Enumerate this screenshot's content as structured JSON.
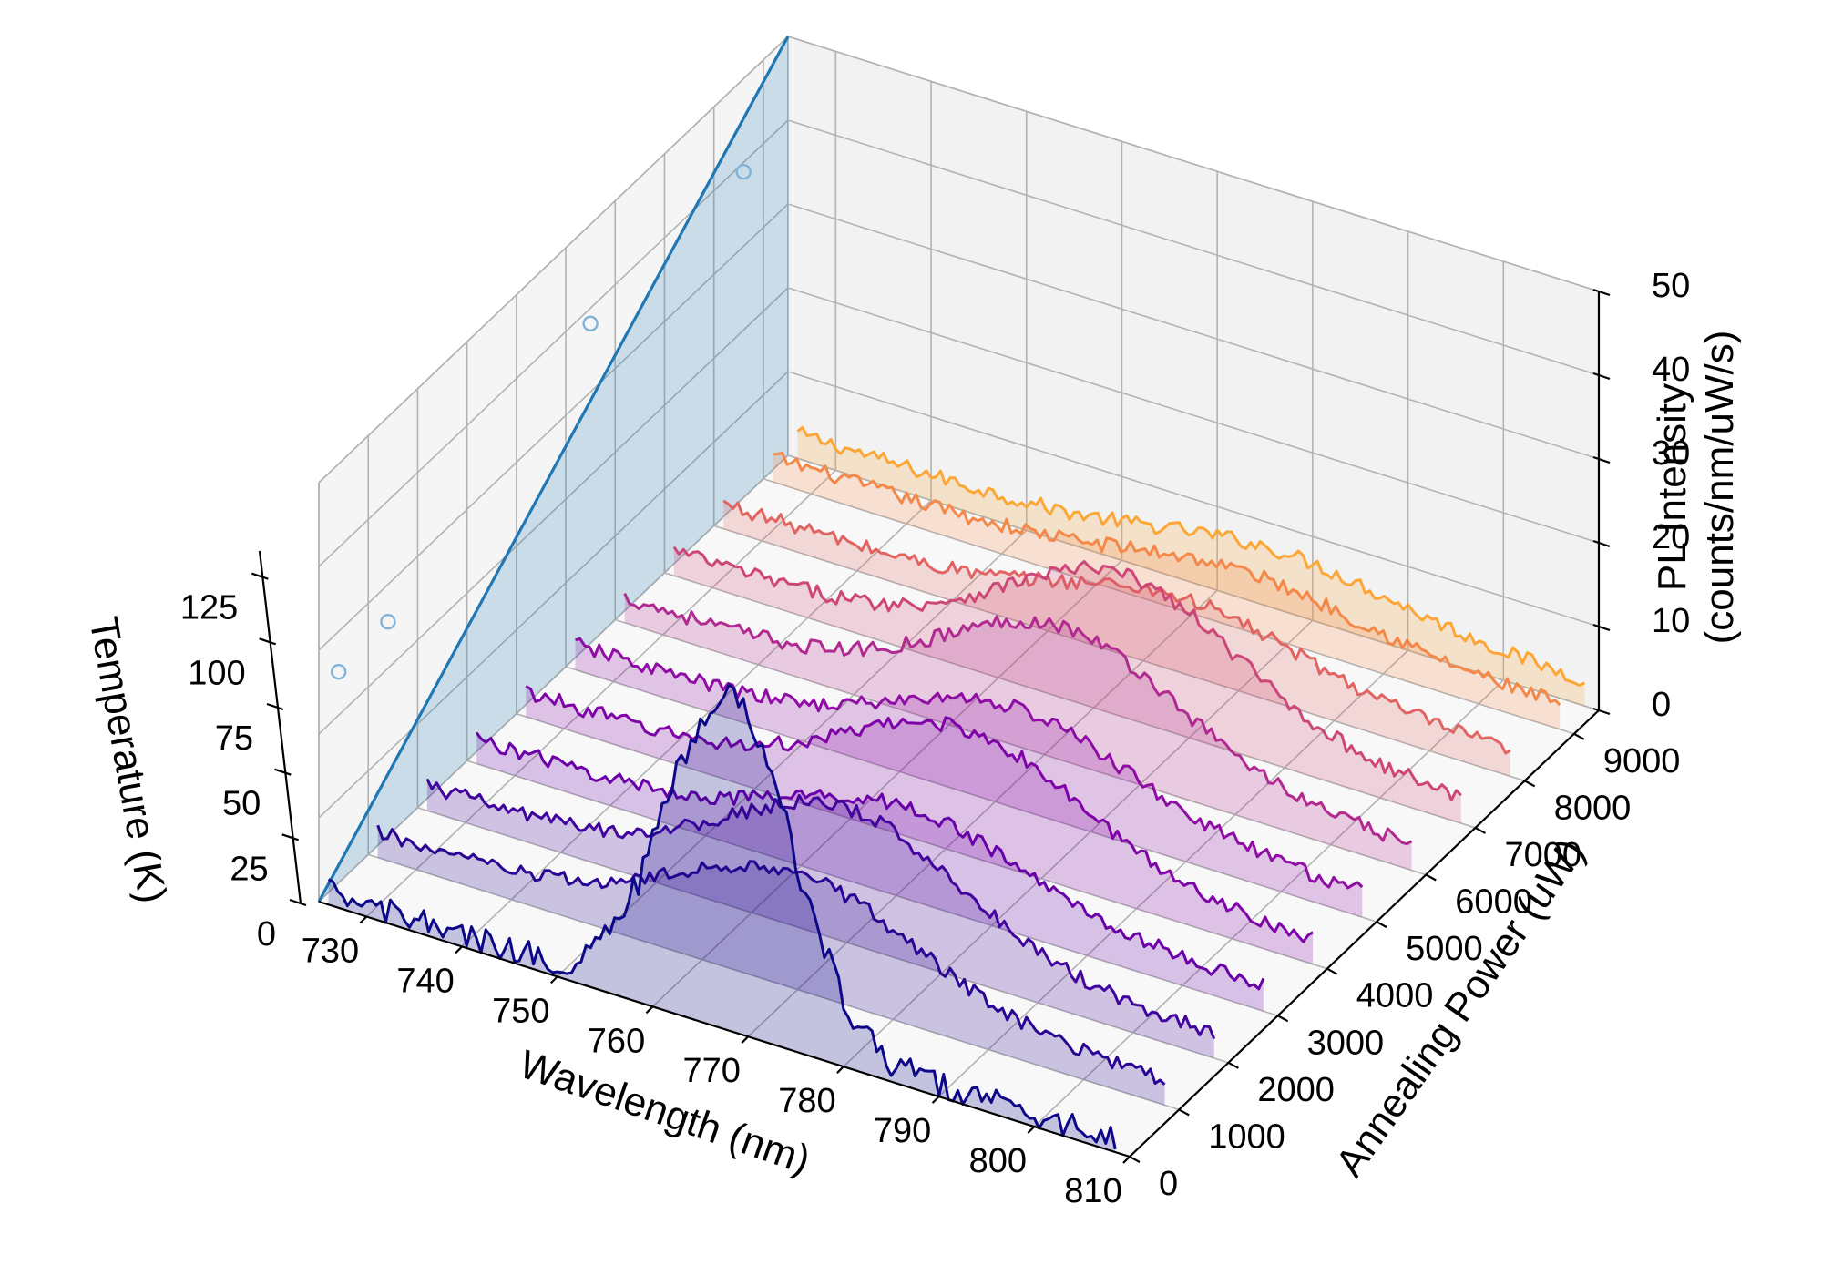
{
  "chart_data": {
    "type": "line",
    "projection": "3d",
    "axes": {
      "x": {
        "label": "Wavelength (nm)",
        "range": [
          725,
          810
        ],
        "ticks": [
          730,
          740,
          750,
          760,
          770,
          780,
          790,
          800,
          810
        ],
        "tick_labels": [
          "730",
          "740",
          "750",
          "760",
          "770",
          "780",
          "790",
          "800",
          "810"
        ]
      },
      "y": {
        "label": "Annealing Power (uW)",
        "range": [
          0,
          9500
        ],
        "ticks": [
          0,
          1000,
          2000,
          3000,
          4000,
          5000,
          6000,
          7000,
          8000,
          9000
        ],
        "tick_labels": [
          "0",
          "1000",
          "2000",
          "3000",
          "4000",
          "5000",
          "6000",
          "7000",
          "8000",
          "9000"
        ]
      },
      "z_right": {
        "label_line1": "PL Intensity",
        "label_line2": "(counts/nm/uW/s)",
        "range": [
          0,
          50
        ],
        "ticks": [
          0,
          10,
          20,
          30,
          40,
          50
        ],
        "tick_labels": [
          "0",
          "10",
          "20",
          "30",
          "40",
          "50"
        ]
      },
      "z_left": {
        "label": "Temperature (K)",
        "range": [
          0,
          135
        ],
        "ticks": [
          0,
          25,
          50,
          75,
          100,
          125
        ],
        "tick_labels": [
          "0",
          "25",
          "50",
          "75",
          "100",
          "125"
        ]
      }
    },
    "grid": true,
    "series": [
      {
        "power": 0,
        "color": "#0d0887",
        "peak_wavelength": 768,
        "peak_intensity": 40
      },
      {
        "power": 1000,
        "color": "#2a0593",
        "peak_wavelength": 770,
        "peak_intensity": 14
      },
      {
        "power": 2000,
        "color": "#41049d",
        "peak_wavelength": 770,
        "peak_intensity": 16
      },
      {
        "power": 3000,
        "color": "#6a00a8",
        "peak_wavelength": 771,
        "peak_intensity": 11
      },
      {
        "power": 4000,
        "color": "#7e03a8",
        "peak_wavelength": 772,
        "peak_intensity": 15
      },
      {
        "power": 5000,
        "color": "#8f0da4",
        "peak_wavelength": 772,
        "peak_intensity": 12
      },
      {
        "power": 6000,
        "color": "#b12a90",
        "peak_wavelength": 772,
        "peak_intensity": 16
      },
      {
        "power": 7000,
        "color": "#cc4778",
        "peak_wavelength": 773,
        "peak_intensity": 17
      },
      {
        "power": 8000,
        "color": "#e16462",
        "peak_wavelength": 774,
        "peak_intensity": 9
      },
      {
        "power": 9000,
        "color": "#f48849",
        "peak_wavelength": 775,
        "peak_intensity": 7
      },
      {
        "power": 9500,
        "color": "#fca636",
        "peak_wavelength": 776,
        "peak_intensity": 7
      }
    ],
    "temperature_line": {
      "color": "#1f77b4",
      "points": [
        {
          "power": 0,
          "temperature": 0
        },
        {
          "power": 9500,
          "temperature": 135
        }
      ]
    },
    "temperature_points": [
      {
        "power": 400,
        "temperature": 68
      },
      {
        "power": 1400,
        "temperature": 69
      },
      {
        "power": 5500,
        "temperature": 103
      },
      {
        "power": 8600,
        "temperature": 105
      }
    ]
  }
}
